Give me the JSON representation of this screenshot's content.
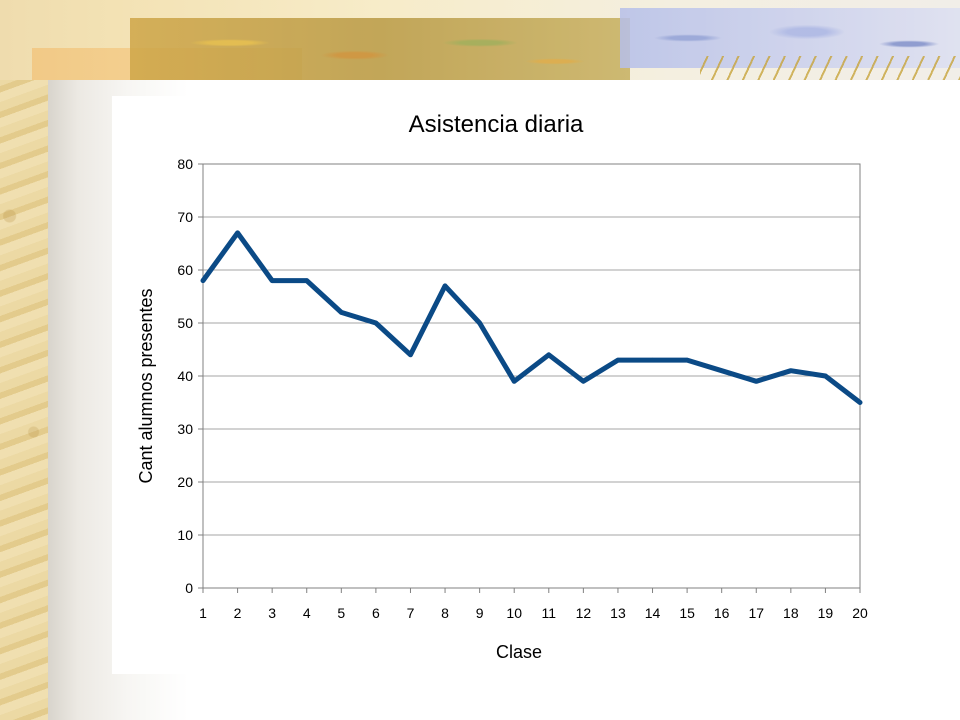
{
  "chart_data": {
    "type": "line",
    "title": "Asistencia diaria",
    "xlabel": "Clase",
    "ylabel": "Cant alumnos presentes",
    "x": [
      1,
      2,
      3,
      4,
      5,
      6,
      7,
      8,
      9,
      10,
      11,
      12,
      13,
      14,
      15,
      16,
      17,
      18,
      19,
      20
    ],
    "ylim": [
      0,
      80
    ],
    "yticks": [
      0,
      10,
      20,
      30,
      40,
      50,
      60,
      70,
      80
    ],
    "grid": true,
    "legend": "none",
    "series": [
      {
        "values": [
          58,
          67,
          58,
          58,
          52,
          50,
          44,
          57,
          50,
          39,
          44,
          39,
          43,
          43,
          43,
          41,
          39,
          41,
          40,
          35
        ],
        "color": "#0b4a86"
      }
    ],
    "gridline_color": "#a6a6a6",
    "plot_border_color": "#808080"
  }
}
